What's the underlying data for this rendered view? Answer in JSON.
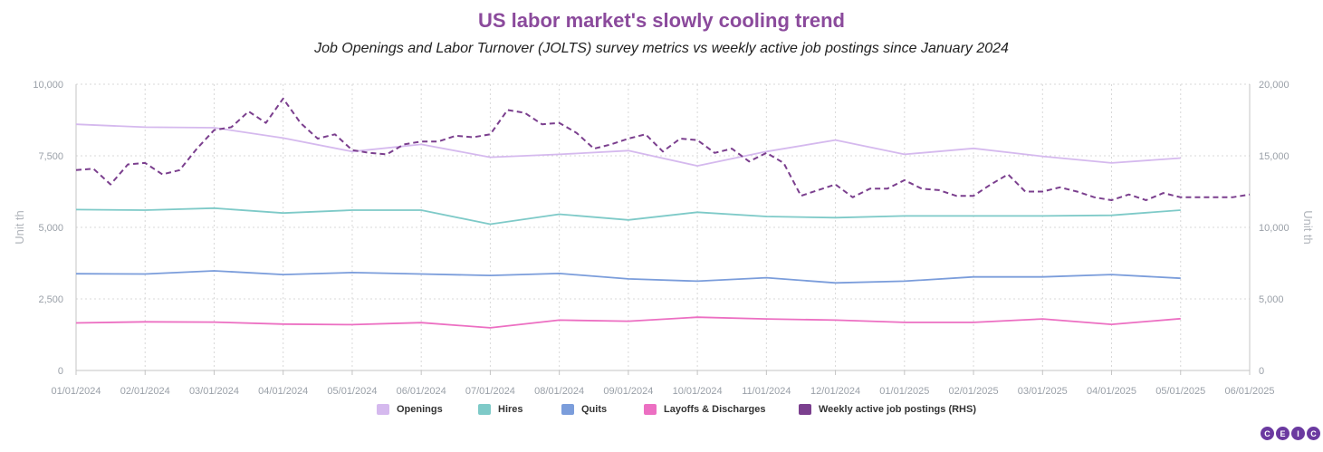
{
  "title": "US labor market's slowly cooling trend",
  "subtitle": "Job Openings and Labor Turnover (JOLTS) survey metrics vs weekly active job postings since January 2024",
  "logo": {
    "letters": [
      "C",
      "E",
      "I",
      "C"
    ],
    "color": "#6b3aa0"
  },
  "chart_data": {
    "type": "line",
    "ylabel": "Unit th",
    "y2label": "Unit th",
    "ylim": [
      0,
      10000
    ],
    "y2lim": [
      0,
      20000
    ],
    "yticks": [
      "10,000",
      "7,500",
      "5,000",
      "2,500",
      "0"
    ],
    "y2ticks": [
      "20,000",
      "15,000",
      "10,000",
      "5,000",
      "0"
    ],
    "x_ticks": [
      "01/01/2024",
      "02/01/2024",
      "03/01/2024",
      "04/01/2024",
      "05/01/2024",
      "06/01/2024",
      "07/01/2024",
      "08/01/2024",
      "09/01/2024",
      "10/01/2024",
      "11/01/2024",
      "12/01/2024",
      "01/01/2025",
      "02/01/2025",
      "03/01/2025",
      "04/01/2025",
      "05/01/2025",
      "06/01/2025"
    ],
    "grid": true,
    "legend_position": "bottom",
    "series": [
      {
        "name": "Openings",
        "color": "#d5b9ee",
        "axis": "left",
        "style": "solid",
        "values": [
          8600,
          8500,
          8480,
          8120,
          7650,
          7900,
          7450,
          7550,
          7680,
          7150,
          7650,
          8050,
          7550,
          7760,
          7480,
          7250,
          7420
        ]
      },
      {
        "name": "Hires",
        "color": "#7ecac8",
        "axis": "left",
        "style": "solid",
        "values": [
          5620,
          5600,
          5670,
          5500,
          5600,
          5600,
          5110,
          5460,
          5260,
          5530,
          5380,
          5340,
          5400,
          5400,
          5400,
          5420,
          5600
        ]
      },
      {
        "name": "Quits",
        "color": "#7b9ddb",
        "axis": "left",
        "style": "solid",
        "values": [
          3380,
          3370,
          3480,
          3350,
          3420,
          3370,
          3320,
          3390,
          3200,
          3120,
          3240,
          3060,
          3120,
          3270,
          3270,
          3350,
          3220
        ]
      },
      {
        "name": "Layoffs & Discharges",
        "color": "#ec6fc2",
        "axis": "left",
        "style": "solid",
        "values": [
          1660,
          1700,
          1690,
          1620,
          1600,
          1670,
          1490,
          1760,
          1720,
          1860,
          1800,
          1760,
          1680,
          1680,
          1800,
          1610,
          1810
        ]
      },
      {
        "name": "Weekly active job postings (RHS)",
        "color": "#7b3f8e",
        "axis": "right",
        "style": "dashed",
        "x_frac": [
          0,
          0.25,
          0.5,
          0.75,
          1.0,
          1.25,
          1.5,
          1.75,
          2.0,
          2.25,
          2.5,
          2.75,
          3.0,
          3.25,
          3.5,
          3.75,
          4.0,
          4.25,
          4.5,
          4.75,
          5.0,
          5.25,
          5.5,
          5.75,
          6.0,
          6.25,
          6.5,
          6.75,
          7.0,
          7.25,
          7.5,
          7.75,
          8.0,
          8.25,
          8.5,
          8.75,
          9.0,
          9.25,
          9.5,
          9.75,
          10.0,
          10.25,
          10.5,
          10.75,
          11.0,
          11.25,
          11.5,
          11.75,
          12.0,
          12.25,
          12.5,
          12.75,
          13.0,
          13.25,
          13.5,
          13.75,
          14.0,
          14.25,
          14.5,
          14.75,
          15.0,
          15.25,
          15.5,
          15.75,
          16.0,
          16.25,
          16.5,
          16.75,
          17.0
        ],
        "values": [
          14000,
          14100,
          13000,
          14400,
          14500,
          13700,
          14000,
          15500,
          16800,
          17000,
          18100,
          17300,
          19000,
          17300,
          16200,
          16500,
          15400,
          15200,
          15100,
          15800,
          16000,
          16000,
          16400,
          16300,
          16500,
          18200,
          18000,
          17200,
          17300,
          16600,
          15500,
          15800,
          16200,
          16500,
          15300,
          16200,
          16100,
          15200,
          15500,
          14600,
          15200,
          14500,
          12200,
          12600,
          13000,
          12100,
          12700,
          12700,
          13300,
          12700,
          12600,
          12200,
          12200,
          13000,
          13700,
          12500,
          12500,
          12800,
          12500,
          12100,
          11900,
          12300,
          11900,
          12400,
          12100,
          12100,
          12100,
          12100,
          12300
        ]
      }
    ]
  }
}
